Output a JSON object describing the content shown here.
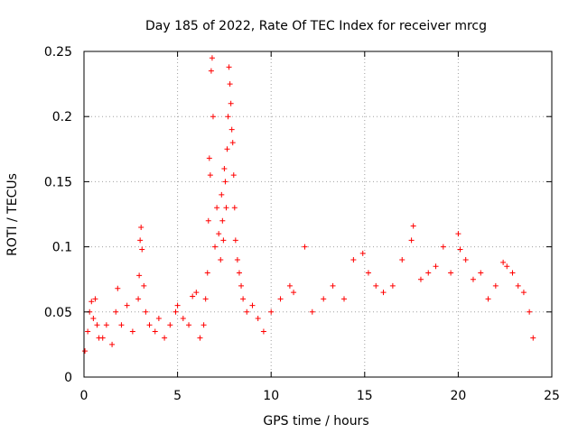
{
  "chart_data": {
    "type": "scatter",
    "title": "Day 185 of 2022, Rate Of TEC Index for receiver mrcg",
    "xlabel": "GPS time / hours",
    "ylabel": "ROTI / TECUs",
    "xlim": [
      0,
      25
    ],
    "ylim": [
      0,
      0.25
    ],
    "xticks": [
      0,
      5,
      10,
      15,
      20,
      25
    ],
    "xtick_labels": [
      "0",
      "5",
      "10",
      "15",
      "20",
      "25"
    ],
    "yticks": [
      0,
      0.05,
      0.1,
      0.15,
      0.2,
      0.25
    ],
    "ytick_labels": [
      "0",
      "0.05",
      "0.1",
      "0.15",
      "0.2",
      "0.25"
    ],
    "grid": true,
    "marker": "+",
    "color": "#ff0000",
    "series": [
      {
        "x": [
          0.05,
          0.2,
          0.3,
          0.4,
          0.5,
          0.6,
          0.7,
          0.8,
          1.0,
          1.2,
          1.5,
          1.7,
          1.8,
          2.0,
          2.3,
          2.6,
          2.9,
          2.95,
          3.0,
          3.05,
          3.1,
          3.2,
          3.3,
          3.5,
          3.8,
          4.0,
          4.3,
          4.6,
          4.9,
          5.0,
          5.3,
          5.6,
          5.8,
          6.0,
          6.2,
          6.4,
          6.5,
          6.6,
          6.65,
          6.7,
          6.75,
          6.8,
          6.85,
          6.9,
          7.0,
          7.1,
          7.2,
          7.3,
          7.35,
          7.4,
          7.45,
          7.5,
          7.55,
          7.6,
          7.65,
          7.7,
          7.75,
          7.8,
          7.85,
          7.9,
          7.95,
          8.0,
          8.05,
          8.1,
          8.2,
          8.3,
          8.4,
          8.5,
          8.7,
          9.0,
          9.3,
          9.6,
          10.0,
          10.5,
          11.0,
          11.2,
          11.8,
          12.2,
          12.8,
          13.3,
          13.9,
          14.4,
          14.9,
          15.2,
          15.6,
          16.0,
          16.5,
          17.0,
          17.5,
          17.6,
          18.0,
          18.4,
          18.8,
          19.2,
          19.6,
          20.0,
          20.1,
          20.4,
          20.8,
          21.2,
          21.6,
          22.0,
          22.4,
          22.6,
          22.9,
          23.2,
          23.5,
          23.8,
          24.0
        ],
        "y": [
          0.02,
          0.035,
          0.05,
          0.058,
          0.045,
          0.06,
          0.04,
          0.03,
          0.03,
          0.04,
          0.025,
          0.05,
          0.068,
          0.04,
          0.055,
          0.035,
          0.06,
          0.078,
          0.105,
          0.115,
          0.098,
          0.07,
          0.05,
          0.04,
          0.035,
          0.045,
          0.03,
          0.04,
          0.05,
          0.055,
          0.045,
          0.04,
          0.062,
          0.065,
          0.03,
          0.04,
          0.06,
          0.08,
          0.12,
          0.168,
          0.155,
          0.235,
          0.245,
          0.2,
          0.1,
          0.13,
          0.11,
          0.09,
          0.14,
          0.12,
          0.105,
          0.16,
          0.15,
          0.13,
          0.175,
          0.2,
          0.238,
          0.225,
          0.21,
          0.19,
          0.18,
          0.155,
          0.13,
          0.105,
          0.09,
          0.08,
          0.07,
          0.06,
          0.05,
          0.055,
          0.045,
          0.035,
          0.05,
          0.06,
          0.07,
          0.065,
          0.1,
          0.05,
          0.06,
          0.07,
          0.06,
          0.09,
          0.095,
          0.08,
          0.07,
          0.065,
          0.07,
          0.09,
          0.105,
          0.116,
          0.075,
          0.08,
          0.085,
          0.1,
          0.08,
          0.11,
          0.098,
          0.09,
          0.075,
          0.08,
          0.06,
          0.07,
          0.088,
          0.085,
          0.08,
          0.07,
          0.065,
          0.05,
          0.03
        ]
      }
    ]
  }
}
